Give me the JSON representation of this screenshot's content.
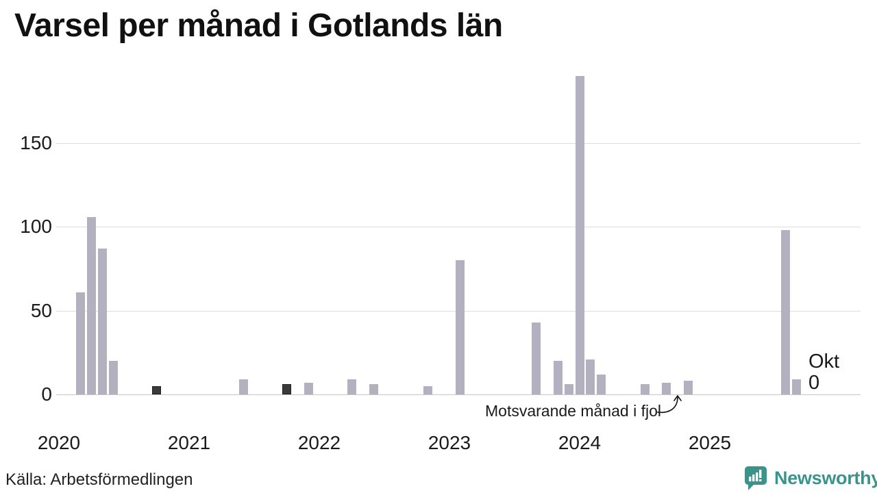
{
  "title": "Varsel per månad i Gotlands län",
  "source": "Källa: Arbetsförmedlingen",
  "brand": {
    "name": "Newsworthy",
    "color": "#3a948c"
  },
  "annotation": {
    "text": "Motsvarande månad i fjol"
  },
  "current_month": {
    "label": "Okt",
    "value": "0"
  },
  "chart_data": {
    "type": "bar",
    "title": "Varsel per månad i Gotlands län",
    "xlabel": "",
    "ylabel": "",
    "x_tick_labels": [
      "2020",
      "2021",
      "2022",
      "2023",
      "2024",
      "2025"
    ],
    "y_tick_labels": [
      "0",
      "50",
      "100",
      "150"
    ],
    "y_gridlines": [
      0,
      50,
      100,
      150
    ],
    "ylim": [
      0,
      195
    ],
    "grid": "horizontal-only",
    "legend": "none",
    "highlight_meaning": "dark bars = October (same month as current) in earlier years; arrow marks October last year (value 0)",
    "bars": [
      {
        "month": "2020-03",
        "value": 61,
        "dark": false
      },
      {
        "month": "2020-04",
        "value": 106,
        "dark": false
      },
      {
        "month": "2020-05",
        "value": 87,
        "dark": false
      },
      {
        "month": "2020-06",
        "value": 20,
        "dark": false
      },
      {
        "month": "2020-10",
        "value": 5,
        "dark": true
      },
      {
        "month": "2021-06",
        "value": 9,
        "dark": false
      },
      {
        "month": "2021-10",
        "value": 6,
        "dark": true
      },
      {
        "month": "2021-12",
        "value": 7,
        "dark": false
      },
      {
        "month": "2022-04",
        "value": 9,
        "dark": false
      },
      {
        "month": "2022-06",
        "value": 6,
        "dark": false
      },
      {
        "month": "2022-11",
        "value": 5,
        "dark": false
      },
      {
        "month": "2023-02",
        "value": 80,
        "dark": false
      },
      {
        "month": "2023-09",
        "value": 43,
        "dark": false
      },
      {
        "month": "2023-11",
        "value": 20,
        "dark": false
      },
      {
        "month": "2023-12",
        "value": 6,
        "dark": false
      },
      {
        "month": "2024-01",
        "value": 190,
        "dark": false
      },
      {
        "month": "2024-02",
        "value": 21,
        "dark": false
      },
      {
        "month": "2024-03",
        "value": 12,
        "dark": false
      },
      {
        "month": "2024-07",
        "value": 6,
        "dark": false
      },
      {
        "month": "2024-09",
        "value": 7,
        "dark": false
      },
      {
        "month": "2024-11",
        "value": 8,
        "dark": false
      },
      {
        "month": "2025-08",
        "value": 98,
        "dark": false
      },
      {
        "month": "2025-09",
        "value": 9,
        "dark": false
      },
      {
        "month": "2025-10",
        "value": 0,
        "dark": false
      }
    ],
    "colors": {
      "bar": "#b3b0bf",
      "bar_dark": "#3a3a3a",
      "gridline": "#dcdcdc",
      "baseline": "#c6c6c6",
      "text": "#1a1a1a",
      "brand_teal": "#3a948c"
    }
  }
}
